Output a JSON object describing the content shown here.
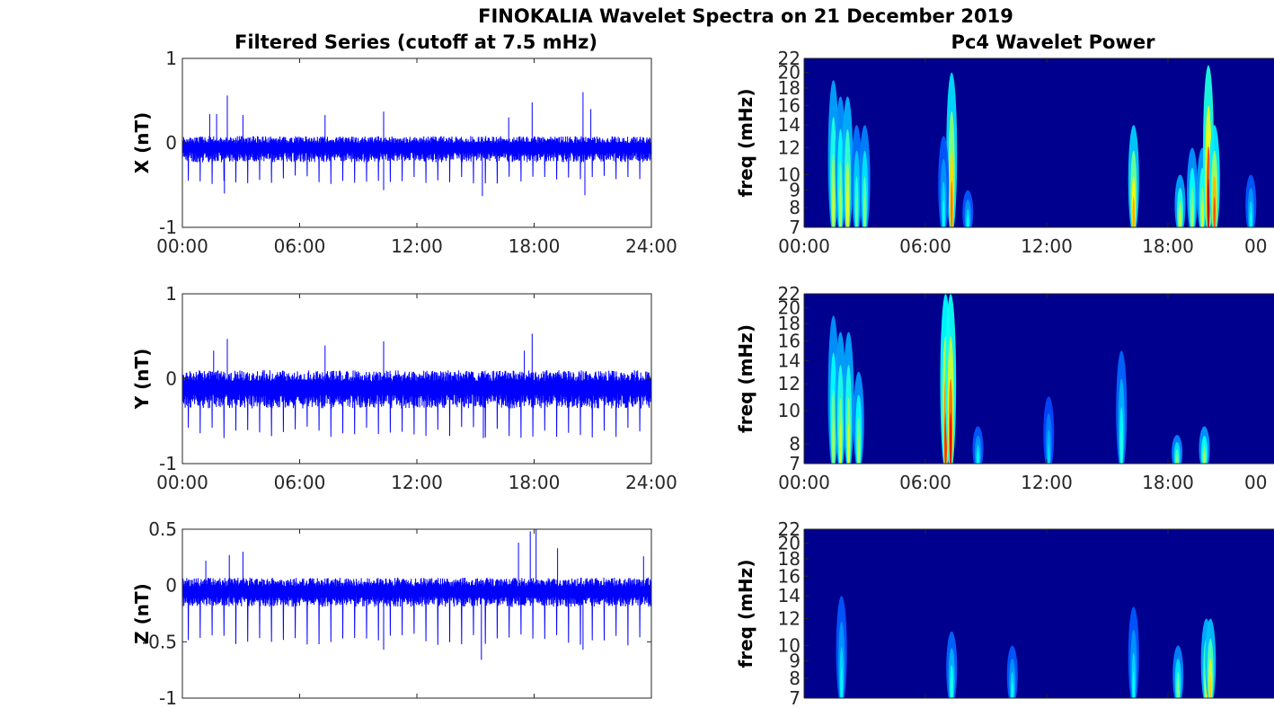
{
  "figure": {
    "title": "FINOKALIA Wavelet Spectra on 21 December 2019",
    "left_title": "Filtered Series (cutoff at 7.5 mHz)",
    "right_title": "Pc4 Wavelet Power"
  },
  "chart_data": [
    {
      "id": "X",
      "type": "line",
      "ylabel": "X (nT)",
      "ylim": [
        -1,
        1
      ],
      "yticks": [
        "1",
        "0",
        "-1"
      ],
      "xticks": [
        "00:00",
        "06:00",
        "12:00",
        "18:00",
        "24:00"
      ],
      "xlim_hours": [
        0,
        24
      ],
      "color": "#0000ff",
      "baseline": -0.05,
      "band_pos": 0.13,
      "band_neg": 0.18,
      "dip_depth": 0.42,
      "spikes": [
        {
          "h": 1.4,
          "v": 0.34
        },
        {
          "h": 1.75,
          "v": 0.34
        },
        {
          "h": 2.3,
          "v": 0.56
        },
        {
          "h": 2.15,
          "v": -0.6
        },
        {
          "h": 3.1,
          "v": 0.33
        },
        {
          "h": 7.3,
          "v": 0.33
        },
        {
          "h": 10.3,
          "v": 0.37
        },
        {
          "h": 10.3,
          "v": -0.56
        },
        {
          "h": 15.35,
          "v": -0.63
        },
        {
          "h": 17.9,
          "v": 0.48
        },
        {
          "h": 20.5,
          "v": 0.6
        },
        {
          "h": 20.6,
          "v": -0.62
        },
        {
          "h": 20.9,
          "v": 0.4
        },
        {
          "h": 16.7,
          "v": 0.3
        }
      ]
    },
    {
      "id": "Y",
      "type": "line",
      "ylabel": "Y (nT)",
      "ylim": [
        -1,
        1
      ],
      "yticks": [
        "1",
        "0",
        "-1"
      ],
      "xticks": [
        "00:00",
        "06:00",
        "12:00",
        "18:00",
        "24:00"
      ],
      "xlim_hours": [
        0,
        24
      ],
      "color": "#0000ff",
      "baseline": -0.1,
      "band_pos": 0.2,
      "band_neg": 0.25,
      "dip_depth": 0.58,
      "spikes": [
        {
          "h": 1.6,
          "v": 0.33
        },
        {
          "h": 2.3,
          "v": 0.47
        },
        {
          "h": 7.3,
          "v": 0.39
        },
        {
          "h": 10.3,
          "v": 0.44
        },
        {
          "h": 15.4,
          "v": -0.7
        },
        {
          "h": 17.9,
          "v": 0.53
        },
        {
          "h": 17.5,
          "v": 0.33
        }
      ]
    },
    {
      "id": "Z",
      "type": "line",
      "ylabel": "Z (nT)",
      "ylim": [
        -1,
        0.5
      ],
      "yticks": [
        "0.5",
        "0",
        "-0.5",
        "-1"
      ],
      "xticks": [],
      "xlim_hours": [
        0,
        24
      ],
      "color": "#0000ff",
      "baseline": -0.05,
      "band_pos": 0.12,
      "band_neg": 0.14,
      "dip_depth": 0.46,
      "spikes": [
        {
          "h": 1.2,
          "v": 0.22
        },
        {
          "h": 2.4,
          "v": 0.27
        },
        {
          "h": 3.1,
          "v": 0.3
        },
        {
          "h": 10.3,
          "v": -0.57
        },
        {
          "h": 15.3,
          "v": -0.66
        },
        {
          "h": 17.2,
          "v": 0.38
        },
        {
          "h": 17.8,
          "v": 0.48
        },
        {
          "h": 18.1,
          "v": 0.5
        },
        {
          "h": 19.2,
          "v": 0.33
        },
        {
          "h": 23.6,
          "v": 0.26
        },
        {
          "h": 20.5,
          "v": -0.57
        }
      ]
    },
    {
      "id": "X-wavelet",
      "type": "heatmap",
      "ylabel": "freq (mHz)",
      "yticks": [
        "22",
        "20",
        "18",
        "16",
        "14",
        "12",
        "10",
        "9",
        "8",
        "7"
      ],
      "ytick_values": [
        22,
        20,
        18,
        16,
        14,
        12,
        10,
        9,
        8,
        7
      ],
      "xticks": [
        "00:00",
        "06:00",
        "12:00",
        "18:00",
        "00"
      ],
      "background": "#00008f",
      "bursts": [
        {
          "h": 1.45,
          "f": 19,
          "level": 0.55
        },
        {
          "h": 1.8,
          "f": 17,
          "level": 0.5
        },
        {
          "h": 2.15,
          "f": 17,
          "level": 0.6
        },
        {
          "h": 2.6,
          "f": 14,
          "level": 0.4
        },
        {
          "h": 3.0,
          "f": 14,
          "level": 0.45
        },
        {
          "h": 7.3,
          "f": 20,
          "level": 0.75
        },
        {
          "h": 6.9,
          "f": 13,
          "level": 0.3
        },
        {
          "h": 8.1,
          "f": 9,
          "level": 0.3
        },
        {
          "h": 16.3,
          "f": 14,
          "level": 0.7
        },
        {
          "h": 18.6,
          "f": 10,
          "level": 0.55
        },
        {
          "h": 19.2,
          "f": 12,
          "level": 0.5
        },
        {
          "h": 19.7,
          "f": 12,
          "level": 0.55
        },
        {
          "h": 20.0,
          "f": 21,
          "level": 0.95
        },
        {
          "h": 20.3,
          "f": 14,
          "level": 0.8
        },
        {
          "h": 22.1,
          "f": 10,
          "level": 0.3
        }
      ]
    },
    {
      "id": "Y-wavelet",
      "type": "heatmap",
      "ylabel": "freq (mHz)",
      "yticks": [
        "22",
        "20",
        "18",
        "16",
        "14",
        "12",
        "10",
        "8",
        "7"
      ],
      "ytick_values": [
        22,
        20,
        18,
        16,
        14,
        12,
        10,
        8,
        7
      ],
      "xticks": [
        "00:00",
        "06:00",
        "12:00",
        "18:00",
        "00"
      ],
      "background": "#00008f",
      "bursts": [
        {
          "h": 1.45,
          "f": 19,
          "level": 0.5
        },
        {
          "h": 1.8,
          "f": 17,
          "level": 0.55
        },
        {
          "h": 2.2,
          "f": 17,
          "level": 0.55
        },
        {
          "h": 2.7,
          "f": 13,
          "level": 0.5
        },
        {
          "h": 7.0,
          "f": 22,
          "level": 0.85
        },
        {
          "h": 7.25,
          "f": 22,
          "level": 0.9
        },
        {
          "h": 8.6,
          "f": 9,
          "level": 0.3
        },
        {
          "h": 12.1,
          "f": 11,
          "level": 0.25
        },
        {
          "h": 15.7,
          "f": 15,
          "level": 0.35
        },
        {
          "h": 18.45,
          "f": 8.5,
          "level": 0.45
        },
        {
          "h": 19.8,
          "f": 9,
          "level": 0.5
        }
      ]
    },
    {
      "id": "Z-wavelet",
      "type": "heatmap",
      "ylabel": "freq (mHz)",
      "yticks": [
        "22",
        "20",
        "18",
        "16",
        "14",
        "12",
        "10",
        "9",
        "8",
        "7"
      ],
      "ytick_values": [
        22,
        20,
        18,
        16,
        14,
        12,
        10,
        9,
        8,
        7
      ],
      "xticks": [],
      "background": "#00008f",
      "bursts": [
        {
          "h": 1.85,
          "f": 14,
          "level": 0.3
        },
        {
          "h": 7.3,
          "f": 11,
          "level": 0.35
        },
        {
          "h": 10.3,
          "f": 10,
          "level": 0.3
        },
        {
          "h": 16.3,
          "f": 13,
          "level": 0.3
        },
        {
          "h": 18.5,
          "f": 10,
          "level": 0.45
        },
        {
          "h": 19.9,
          "f": 12,
          "level": 0.6
        },
        {
          "h": 20.1,
          "f": 12,
          "level": 0.65
        }
      ]
    }
  ]
}
